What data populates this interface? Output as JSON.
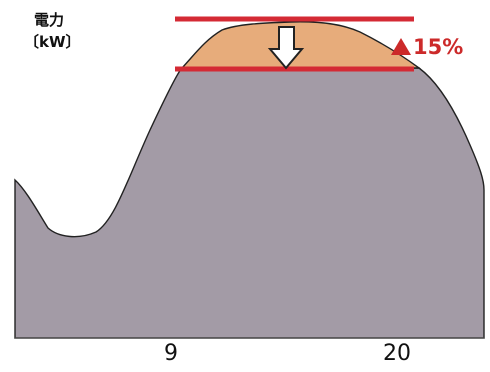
{
  "chart_data": {
    "type": "area",
    "ylabel_line1": "電力",
    "ylabel_line2": "〔kW〕",
    "x_ticks": [
      "9",
      "20"
    ],
    "reduction_label": "15%",
    "reduction_marker": "triangle-up",
    "colors": {
      "area_fill": "#a39ba6",
      "peak_fill": "#e7ac7b",
      "cap_lines": "#d42a34",
      "label": "#cc2a2a",
      "arrow": "#ffffff"
    }
  }
}
